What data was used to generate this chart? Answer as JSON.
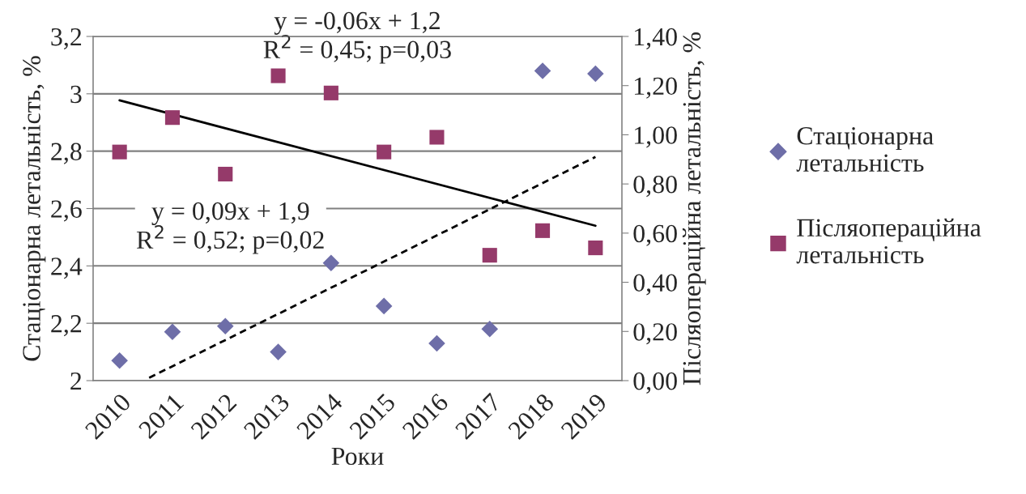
{
  "chart_data": {
    "type": "scatter",
    "xlabel": "Роки",
    "ylabel": "Стаціонарна летальність, %",
    "y2label": "Післяопераційна летальність, %",
    "x": [
      2010,
      2011,
      2012,
      2013,
      2014,
      2015,
      2016,
      2017,
      2018,
      2019
    ],
    "xlim": [
      2009.5,
      2019.5
    ],
    "xticks": [
      2010,
      2011,
      2012,
      2013,
      2014,
      2015,
      2016,
      2017,
      2018,
      2019
    ],
    "ylim": [
      2,
      3.2
    ],
    "yticks": [
      2,
      {
        "value": 2.2,
        "label": "2,2"
      },
      {
        "value": 2.4,
        "label": "2,4"
      },
      {
        "value": 2.6,
        "label": "2,6"
      },
      {
        "value": 2.8,
        "label": "2,8"
      },
      3,
      {
        "value": 3.2,
        "label": "3,2"
      }
    ],
    "y2lim": [
      0,
      1.4
    ],
    "y2ticks": [
      {
        "value": 0,
        "label": "0,00"
      },
      {
        "value": 0.2,
        "label": "0,20"
      },
      {
        "value": 0.4,
        "label": "0,40"
      },
      {
        "value": 0.6,
        "label": "0,60"
      },
      {
        "value": 0.8,
        "label": "0,80"
      },
      {
        "value": 1.0,
        "label": "1,00"
      },
      {
        "value": 1.2,
        "label": "1,20"
      },
      {
        "value": 1.4,
        "label": "1,40"
      }
    ],
    "grid": "y",
    "legend": "right",
    "series": [
      {
        "name": "Стаціонарна\nлетальність",
        "color": "#6e6ea8",
        "marker": "diamond",
        "axis": "y",
        "values": [
          2.07,
          2.17,
          2.19,
          2.1,
          2.41,
          2.26,
          2.13,
          2.18,
          3.08,
          3.07
        ]
      },
      {
        "name": "Післяопераційна\nлетальність",
        "color": "#953a6a",
        "marker": "square",
        "axis": "y2",
        "values": [
          0.93,
          1.07,
          0.84,
          1.24,
          1.17,
          0.93,
          0.99,
          0.51,
          0.61,
          0.54
        ]
      },
      {
        "type": "line",
        "color": "#000000",
        "line_style": "solid",
        "marker": "none",
        "axis": "y2",
        "x": [
          2010,
          2019
        ],
        "values": [
          1.14,
          0.63
        ]
      },
      {
        "type": "line",
        "color": "#000000",
        "line_style": "dashed",
        "marker": "none",
        "axis": "y",
        "x": [
          2010.56,
          2019
        ],
        "values": [
          2.01,
          2.78
        ]
      }
    ],
    "annotations": [
      "y = -0,06x + 1,2\nR$^{2}$ = 0,45; p=0,03",
      "y = 0,09x + 1,9\nR$^{2}$ = 0,52; p=0,02"
    ]
  }
}
